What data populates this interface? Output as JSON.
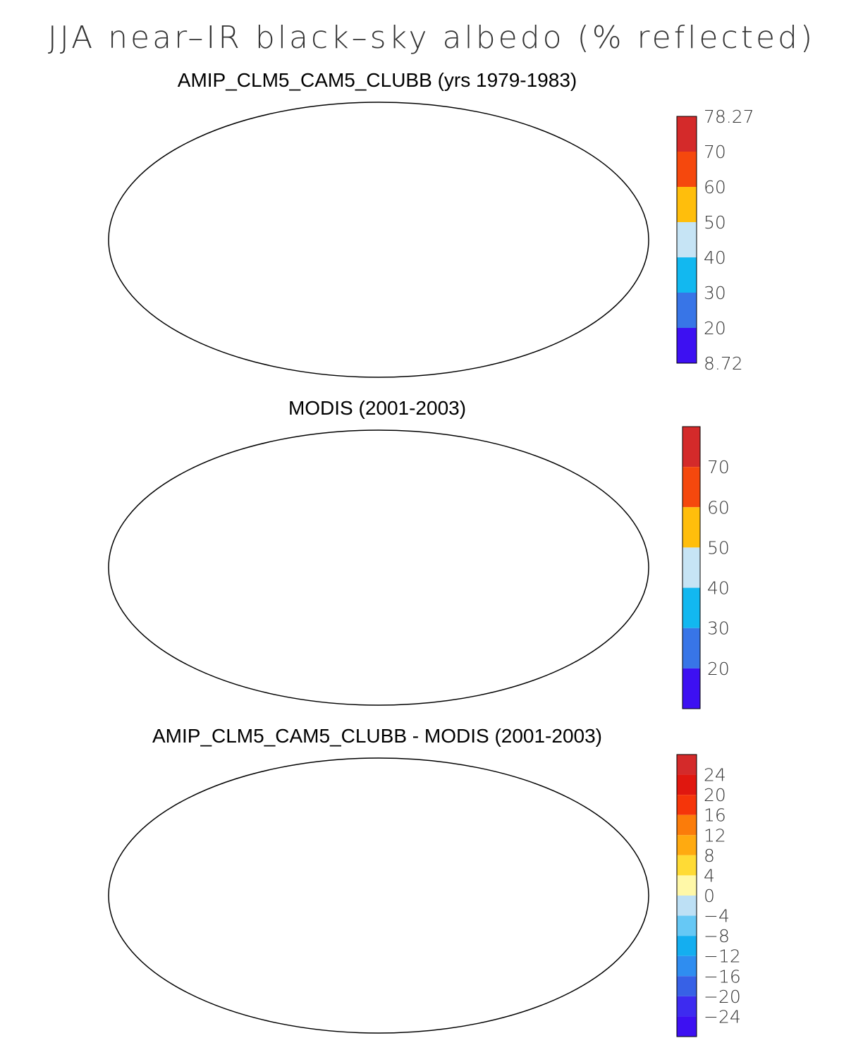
{
  "page_title": "JJA near–IR black–sky albedo (% reflected)",
  "maps": [
    {
      "title": "AMIP_CLM5_CAM5_CLUBB (yrs 1979-1983)",
      "projection": "robinson",
      "colorbar": {
        "labels": [
          "78.27",
          "70",
          "60",
          "50",
          "40",
          "30",
          "20",
          "8.72"
        ],
        "colors": [
          "#d42a2a",
          "#f5480d",
          "#ffbe0c",
          "#c6e4f5",
          "#12b8f0",
          "#3875e7",
          "#3d10f2"
        ]
      },
      "regions": {
        "land": "#3d10f2",
        "sahara": "#c6e4f5",
        "greenland": "#f5480d",
        "australia": "#3875e7",
        "antarctica": "#d42a2a",
        "siberia": "#3d10f2"
      }
    },
    {
      "title": "MODIS (2001-2003)",
      "projection": "robinson",
      "colorbar": {
        "labels": [
          "70",
          "60",
          "50",
          "40",
          "30",
          "20"
        ],
        "colors": [
          "#d42a2a",
          "#f5480d",
          "#ffbe0c",
          "#c6e4f5",
          "#12b8f0",
          "#3875e7",
          "#3d10f2"
        ]
      },
      "regions": {
        "land": "#3875e7",
        "sahara": "#ffbe0c",
        "greenland": "#f5480d",
        "australia": "#3875e7",
        "antarctica": "#ffbe0c",
        "siberia": "#3875e7"
      }
    },
    {
      "title": "AMIP_CLM5_CAM5_CLUBB - MODIS (2001-2003)",
      "projection": "robinson",
      "colorbar": {
        "labels": [
          "24",
          "20",
          "16",
          "12",
          "8",
          "4",
          "0",
          "−4",
          "−8",
          "−12",
          "−16",
          "−20",
          "−24"
        ],
        "colors": [
          "#d42a2a",
          "#e0170f",
          "#f5350a",
          "#fb7c0a",
          "#ffaa10",
          "#ffdb35",
          "#fff8a8",
          "#bde0f5",
          "#66c8f5",
          "#14aef0",
          "#2f8df0",
          "#3761e6",
          "#3d2bf0",
          "#3d10f2"
        ]
      },
      "regions": {
        "land": "#bde0f5",
        "sahara": "#fff8a8",
        "greenland": "#bde0f5",
        "australia": "#bde0f5",
        "antarctica": "#e0170f",
        "siberia": "#66c8f5"
      }
    }
  ]
}
